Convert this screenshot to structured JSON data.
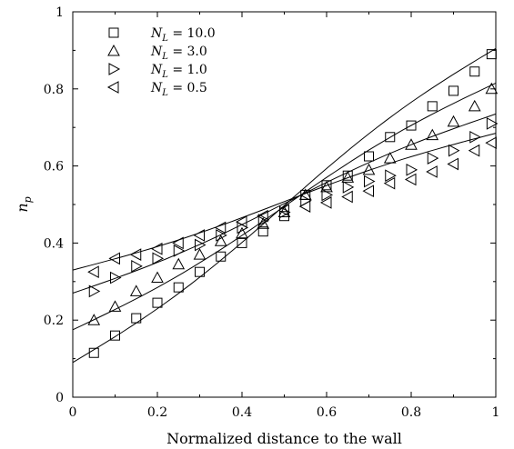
{
  "chart_data": {
    "type": "scatter",
    "xlabel": "Normalized distance to the wall",
    "ylabel": "n",
    "ylabel_subscript": "p",
    "xlim": [
      0,
      1
    ],
    "ylim": [
      0,
      1
    ],
    "xticks": [
      "0",
      "0.2",
      "0.4",
      "0.6",
      "0.8",
      "1"
    ],
    "yticks": [
      "0",
      "0.2",
      "0.4",
      "0.6",
      "0.8",
      "1"
    ],
    "grid": false,
    "legend_position": "top-left",
    "series": [
      {
        "name": "N",
        "name_subscript": "L",
        "value_label": "= 10.0",
        "marker": "square",
        "x": [
          0.05,
          0.1,
          0.15,
          0.2,
          0.25,
          0.3,
          0.35,
          0.4,
          0.45,
          0.5,
          0.55,
          0.6,
          0.65,
          0.7,
          0.75,
          0.8,
          0.85,
          0.9,
          0.95,
          0.99
        ],
        "y": [
          0.115,
          0.16,
          0.205,
          0.245,
          0.285,
          0.325,
          0.365,
          0.4,
          0.43,
          0.47,
          0.525,
          0.55,
          0.575,
          0.625,
          0.675,
          0.705,
          0.755,
          0.795,
          0.845,
          0.89
        ],
        "fit": [
          0.09,
          0.905
        ]
      },
      {
        "name": "N",
        "name_subscript": "L",
        "value_label": "=  3.0",
        "marker": "triangle-up",
        "x": [
          0.05,
          0.1,
          0.15,
          0.2,
          0.25,
          0.3,
          0.35,
          0.4,
          0.45,
          0.5,
          0.55,
          0.6,
          0.65,
          0.7,
          0.75,
          0.8,
          0.85,
          0.9,
          0.95,
          0.99
        ],
        "y": [
          0.2,
          0.235,
          0.275,
          0.31,
          0.345,
          0.37,
          0.405,
          0.425,
          0.45,
          0.48,
          0.525,
          0.545,
          0.57,
          0.59,
          0.62,
          0.655,
          0.68,
          0.715,
          0.755,
          0.8
        ],
        "fit": [
          0.175,
          0.815
        ]
      },
      {
        "name": "N",
        "name_subscript": "L",
        "value_label": "=  1.0",
        "marker": "triangle-right",
        "x": [
          0.05,
          0.1,
          0.15,
          0.2,
          0.25,
          0.3,
          0.35,
          0.4,
          0.45,
          0.5,
          0.55,
          0.6,
          0.65,
          0.7,
          0.75,
          0.8,
          0.85,
          0.9,
          0.95,
          0.99
        ],
        "y": [
          0.275,
          0.31,
          0.34,
          0.36,
          0.38,
          0.395,
          0.42,
          0.44,
          0.46,
          0.48,
          0.51,
          0.525,
          0.545,
          0.56,
          0.575,
          0.59,
          0.62,
          0.64,
          0.675,
          0.71
        ],
        "fit": [
          0.27,
          0.735
        ]
      },
      {
        "name": "N",
        "name_subscript": "L",
        "value_label": "=  0.5",
        "marker": "triangle-left",
        "x": [
          0.05,
          0.1,
          0.15,
          0.2,
          0.25,
          0.3,
          0.35,
          0.4,
          0.45,
          0.5,
          0.55,
          0.6,
          0.65,
          0.7,
          0.75,
          0.8,
          0.85,
          0.9,
          0.95,
          0.99
        ],
        "y": [
          0.325,
          0.36,
          0.37,
          0.385,
          0.4,
          0.42,
          0.44,
          0.455,
          0.47,
          0.485,
          0.495,
          0.505,
          0.52,
          0.535,
          0.555,
          0.565,
          0.585,
          0.605,
          0.64,
          0.66
        ],
        "fit": [
          0.33,
          0.685
        ]
      }
    ]
  }
}
